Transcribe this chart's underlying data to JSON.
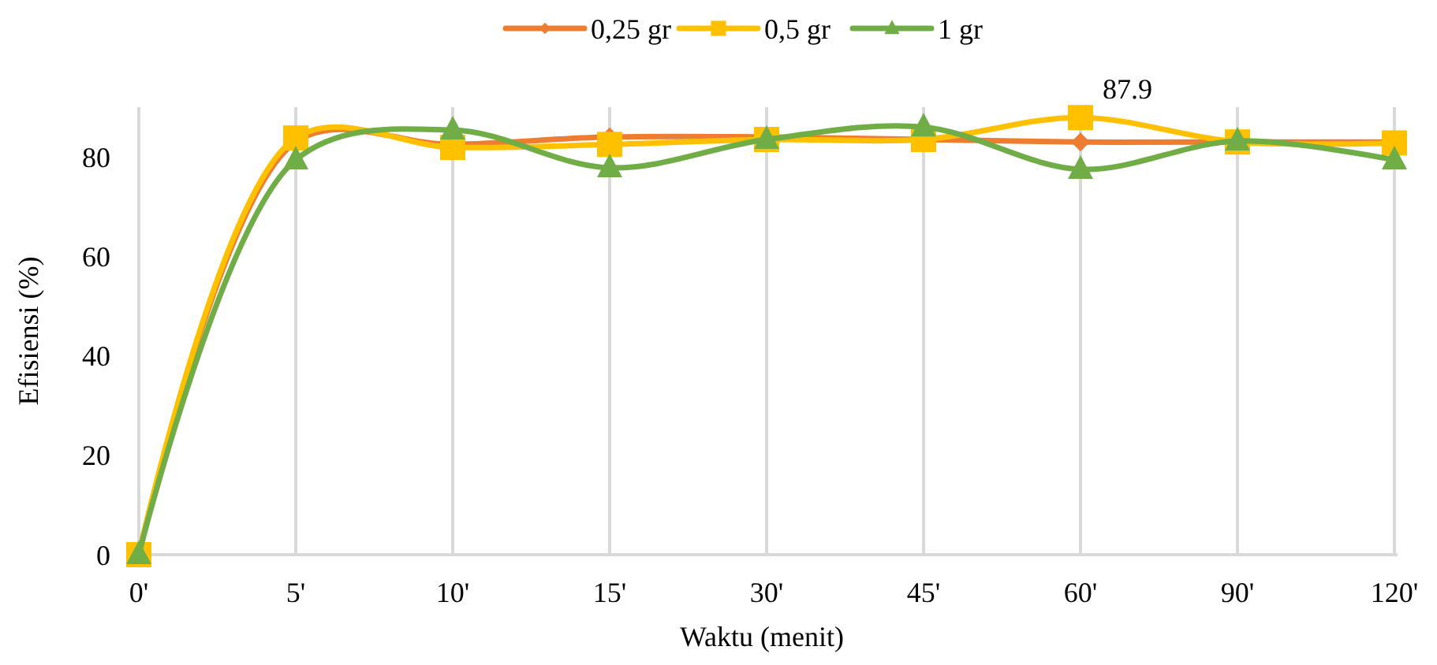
{
  "chart_data": {
    "type": "line",
    "xlabel": "Waktu (menit)",
    "ylabel": "Efisiensi (%)",
    "categories": [
      "0'",
      "5'",
      "10'",
      "15'",
      "30'",
      "45'",
      "60'",
      "90'",
      "120'"
    ],
    "ylim": [
      0,
      90
    ],
    "yticks": [
      0,
      20,
      40,
      60,
      80
    ],
    "grid": "x",
    "legend": "top",
    "line_style": "solid",
    "series": [
      {
        "name": "0,25 gr",
        "color": "#ed7d31",
        "marker": "diamond",
        "values": [
          0,
          83,
          82.5,
          84,
          84,
          83.5,
          83,
          83,
          83
        ]
      },
      {
        "name": "0,5 gr",
        "color": "#ffc000",
        "marker": "square",
        "values": [
          0,
          83.8,
          81.9,
          82.5,
          83.5,
          83.5,
          87.9,
          83,
          82.8
        ],
        "value_labels": [
          null,
          null,
          null,
          null,
          null,
          null,
          "87.9",
          null,
          null
        ]
      },
      {
        "name": "1 gr",
        "color": "#70ad47",
        "marker": "triangle",
        "values": [
          0,
          79.4,
          85.4,
          77.8,
          83.5,
          86,
          77.5,
          83.2,
          79.4
        ]
      }
    ]
  }
}
